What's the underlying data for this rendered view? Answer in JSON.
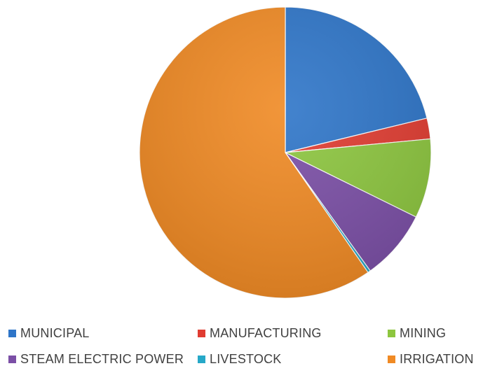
{
  "chart_data": {
    "type": "pie",
    "title": "",
    "legend_position": "bottom",
    "slices": [
      {
        "label": "MUNICIPAL",
        "value": 21.2,
        "color": "#2E75C8"
      },
      {
        "label": "MANUFACTURING",
        "value": 2.3,
        "color": "#E03C31"
      },
      {
        "label": "MINING",
        "value": 8.8,
        "color": "#8DC63F"
      },
      {
        "label": "STEAM ELECTRIC POWER",
        "value": 7.8,
        "color": "#7B4FA6"
      },
      {
        "label": "LIVESTOCK",
        "value": 0.3,
        "color": "#26A8C8"
      },
      {
        "label": "IRRIGATION",
        "value": 59.6,
        "color": "#F08A24"
      }
    ]
  }
}
